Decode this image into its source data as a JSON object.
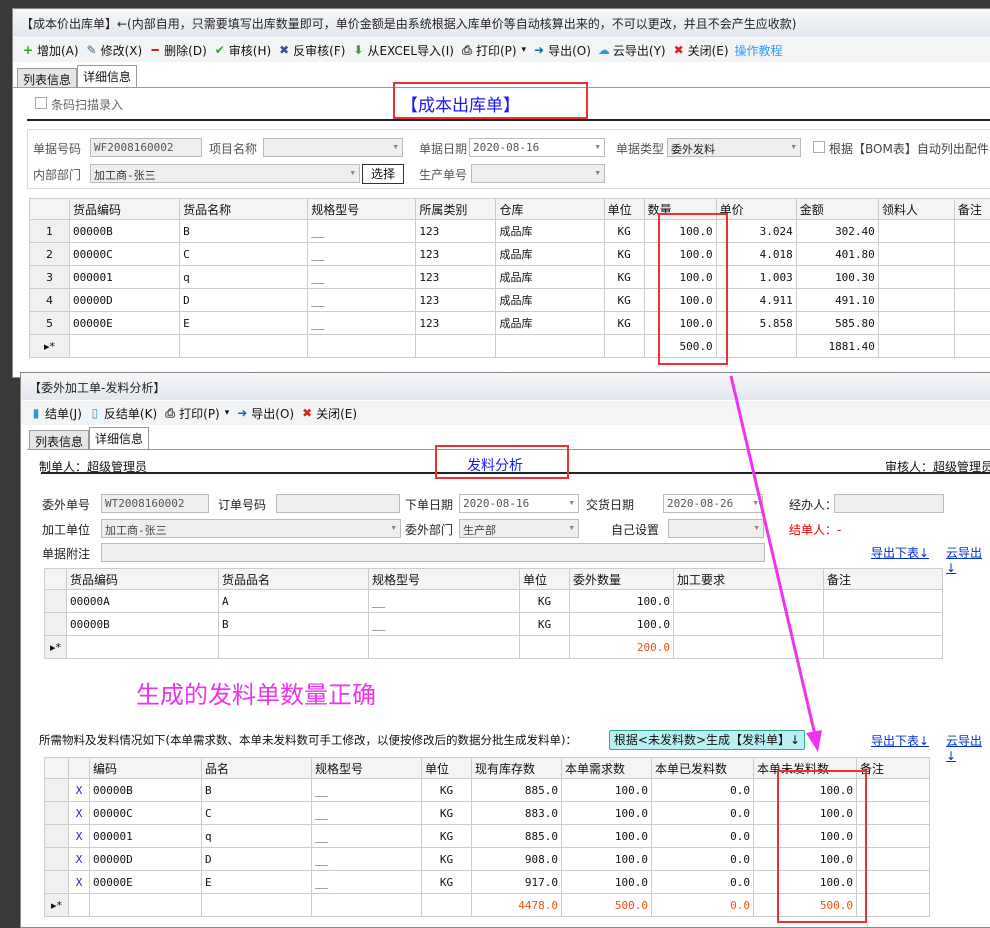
{
  "win1": {
    "title": "【成本价出库单】←(内部自用，只需要填写出库数量即可，单价金额是由系统根据入库单价等自动核算出来的，不可以更改，并且不会产生应收款)",
    "toolbar": [
      {
        "icon": "plus-icon",
        "label": "增加(A)"
      },
      {
        "icon": "edit-icon",
        "label": "修改(X)"
      },
      {
        "icon": "minus-icon",
        "label": "删除(D)"
      },
      {
        "icon": "check-icon",
        "label": "审核(H)"
      },
      {
        "icon": "cross-icon",
        "label": "反审核(F)"
      },
      {
        "icon": "import-arrow-icon",
        "label": "从EXCEL导入(I)"
      },
      {
        "icon": "printer-icon",
        "label": "打印(P)"
      },
      {
        "icon": "export-icon",
        "label": "导出(O)"
      },
      {
        "icon": "cloud-icon",
        "label": "云导出(Y)"
      },
      {
        "icon": "close-icon",
        "label": "关闭(E)"
      }
    ],
    "tutorial": "操作教程",
    "tabs": [
      "列表信息",
      "详细信息"
    ],
    "barcode": "条码扫描录入",
    "heading": "【成本出库单】",
    "form": {
      "doc_no_label": "单据号码",
      "doc_no": "WF2008160002",
      "project_label": "项目名称",
      "project": "",
      "date_label": "单据日期",
      "date": "2020-08-16",
      "type_label": "单据类型",
      "type": "委外发料",
      "bom_label": "根据【BOM表】自动列出配件",
      "dept_label": "内部部门",
      "dept": "加工商-张三",
      "select_btn": "选择",
      "prod_label": "生产单号",
      "prod": ""
    },
    "columns": [
      "货品编码",
      "货品名称",
      "规格型号",
      "所属类别",
      "仓库",
      "单位",
      "数量",
      "单价",
      "金额",
      "领料人",
      "备注"
    ],
    "rows": [
      [
        "00000B",
        "B",
        "__",
        "123",
        "成品库",
        "KG",
        "100.0",
        "3.024",
        "302.40",
        "",
        ""
      ],
      [
        "00000C",
        "C",
        "__",
        "123",
        "成品库",
        "KG",
        "100.0",
        "4.018",
        "401.80",
        "",
        ""
      ],
      [
        "000001",
        "q",
        "__",
        "123",
        "成品库",
        "KG",
        "100.0",
        "1.003",
        "100.30",
        "",
        ""
      ],
      [
        "00000D",
        "D",
        "__",
        "123",
        "成品库",
        "KG",
        "100.0",
        "4.911",
        "491.10",
        "",
        ""
      ],
      [
        "00000E",
        "E",
        "__",
        "123",
        "成品库",
        "KG",
        "100.0",
        "5.858",
        "585.80",
        "",
        ""
      ]
    ],
    "totals": {
      "qty": "500.0",
      "amount": "1881.40"
    }
  },
  "win2": {
    "title": "【委外加工单-发料分析】",
    "toolbar": [
      {
        "icon": "finish-icon",
        "label": "结单(J)"
      },
      {
        "icon": "unfinish-icon",
        "label": "反结单(K)"
      },
      {
        "icon": "printer-icon",
        "label": "打印(P)"
      },
      {
        "icon": "export-icon",
        "label": "导出(O)"
      },
      {
        "icon": "close-icon",
        "label": "关闭(E)"
      }
    ],
    "tabs": [
      "列表信息",
      "详细信息"
    ],
    "maker": "制单人：超级管理员",
    "heading": "发料分析",
    "auditor": "审核人：超级管理员",
    "form": {
      "no_label": "委外单号",
      "no": "WT2008160002",
      "order_label": "订单号码",
      "order": "",
      "odate_label": "下单日期",
      "odate": "2020-08-16",
      "ddate_label": "交货日期",
      "ddate": "2020-08-26",
      "handler_label": "经办人：",
      "handler": "",
      "unit_label": "加工单位",
      "unit": "加工商-张三",
      "dept_label": "委外部门",
      "dept": "生产部",
      "custom_label": "自己设置",
      "custom": "",
      "closer": "结单人：-",
      "note_label": "单据附注",
      "note": ""
    },
    "links": [
      "导出下表↓",
      "云导出↓"
    ],
    "columns": [
      "货品编码",
      "货品品名",
      "规格型号",
      "单位",
      "委外数量",
      "加工要求",
      "备注"
    ],
    "rows": [
      [
        "00000A",
        "A",
        "__",
        "KG",
        "100.0",
        "",
        ""
      ],
      [
        "00000B",
        "B",
        "__",
        "KG",
        "100.0",
        "",
        ""
      ]
    ],
    "total_qty": "200.0",
    "annotation": "生成的发料单数量正确",
    "desc": "所需物料及发料情况如下(本单需求数、本单未发料数可手工修改，以便按修改后的数据分批生成发料单)：",
    "gen_btn": "根据<未发料数>生成【发料单】↓",
    "columns2": [
      "编码",
      "品名",
      "规格型号",
      "单位",
      "现有库存数",
      "本单需求数",
      "本单已发料数",
      "本单未发料数",
      "备注"
    ],
    "rows2": [
      [
        "X",
        "00000B",
        "B",
        "__",
        "KG",
        "885.0",
        "100.0",
        "0.0",
        "100.0",
        ""
      ],
      [
        "X",
        "00000C",
        "C",
        "__",
        "KG",
        "883.0",
        "100.0",
        "0.0",
        "100.0",
        ""
      ],
      [
        "X",
        "000001",
        "q",
        "__",
        "KG",
        "885.0",
        "100.0",
        "0.0",
        "100.0",
        ""
      ],
      [
        "X",
        "00000D",
        "D",
        "__",
        "KG",
        "908.0",
        "100.0",
        "0.0",
        "100.0",
        ""
      ],
      [
        "X",
        "00000E",
        "E",
        "__",
        "KG",
        "917.0",
        "100.0",
        "0.0",
        "100.0",
        ""
      ]
    ],
    "totals2": {
      "stock": "4478.0",
      "need": "500.0",
      "issued": "0.0",
      "pending": "500.0"
    }
  },
  "colors": {
    "annotation": "#ee33ee",
    "highlight_box": "#f03030",
    "link": "#0033cc",
    "total": "#f05010"
  }
}
